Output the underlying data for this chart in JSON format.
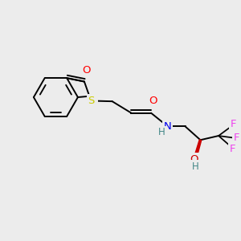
{
  "bg_color": "#ececec",
  "figsize": [
    3.0,
    3.0
  ],
  "dpi": 100,
  "atom_colors": {
    "O": "#ff0000",
    "N": "#0000ee",
    "S": "#cccc00",
    "F": "#ee44ee",
    "OH_O": "#cc0000",
    "OH_H": "#448888",
    "NH_N": "#0000ee",
    "NH_H": "#448888",
    "C": "#000000"
  },
  "bond_color": "#000000",
  "bond_width": 1.4,
  "font_size": 9.5
}
